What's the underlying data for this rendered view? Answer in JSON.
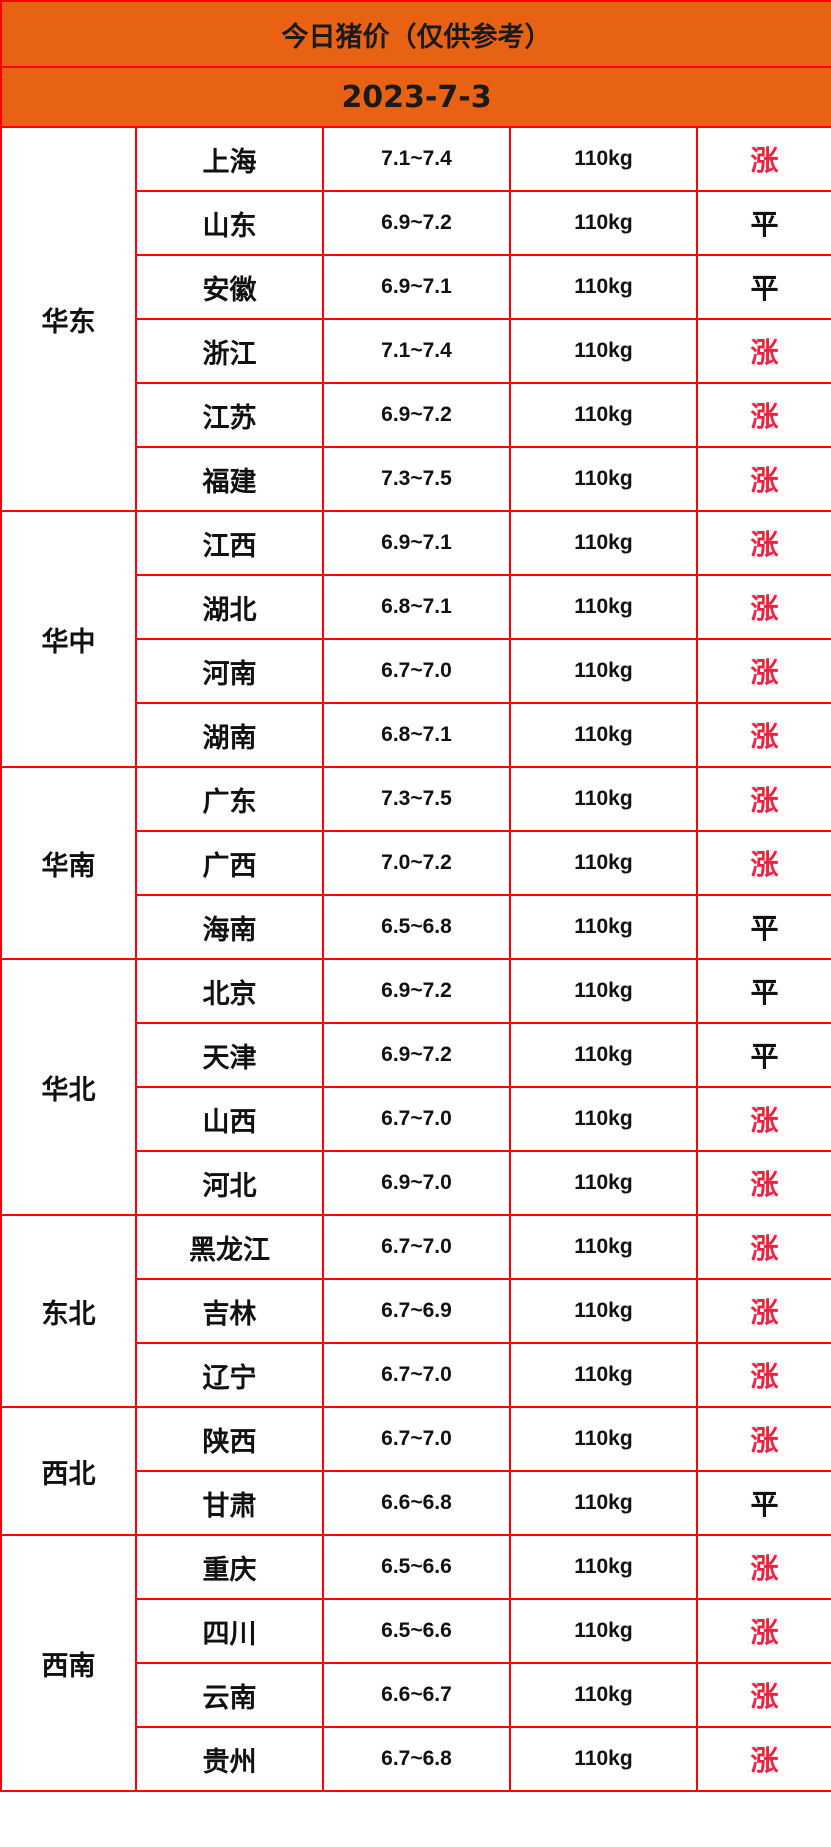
{
  "title": "今日猪价（仅供参考）",
  "date": "2023-7-3",
  "colors": {
    "header_bg": "#e86214",
    "border": "#ff0000",
    "up": "#f5203f",
    "flat": "#111111"
  },
  "groups": [
    {
      "region": "华东",
      "rows": [
        {
          "province": "上海",
          "price": "7.1~7.4",
          "weight": "110kg",
          "trend": "涨"
        },
        {
          "province": "山东",
          "price": "6.9~7.2",
          "weight": "110kg",
          "trend": "平"
        },
        {
          "province": "安徽",
          "price": "6.9~7.1",
          "weight": "110kg",
          "trend": "平"
        },
        {
          "province": "浙江",
          "price": "7.1~7.4",
          "weight": "110kg",
          "trend": "涨"
        },
        {
          "province": "江苏",
          "price": "6.9~7.2",
          "weight": "110kg",
          "trend": "涨"
        },
        {
          "province": "福建",
          "price": "7.3~7.5",
          "weight": "110kg",
          "trend": "涨"
        }
      ]
    },
    {
      "region": "华中",
      "rows": [
        {
          "province": "江西",
          "price": "6.9~7.1",
          "weight": "110kg",
          "trend": "涨"
        },
        {
          "province": "湖北",
          "price": "6.8~7.1",
          "weight": "110kg",
          "trend": "涨"
        },
        {
          "province": "河南",
          "price": "6.7~7.0",
          "weight": "110kg",
          "trend": "涨"
        },
        {
          "province": "湖南",
          "price": "6.8~7.1",
          "weight": "110kg",
          "trend": "涨"
        }
      ]
    },
    {
      "region": "华南",
      "rows": [
        {
          "province": "广东",
          "price": "7.3~7.5",
          "weight": "110kg",
          "trend": "涨"
        },
        {
          "province": "广西",
          "price": "7.0~7.2",
          "weight": "110kg",
          "trend": "涨"
        },
        {
          "province": "海南",
          "price": "6.5~6.8",
          "weight": "110kg",
          "trend": "平"
        }
      ]
    },
    {
      "region": "华北",
      "rows": [
        {
          "province": "北京",
          "price": "6.9~7.2",
          "weight": "110kg",
          "trend": "平"
        },
        {
          "province": "天津",
          "price": "6.9~7.2",
          "weight": "110kg",
          "trend": "平"
        },
        {
          "province": "山西",
          "price": "6.7~7.0",
          "weight": "110kg",
          "trend": "涨"
        },
        {
          "province": "河北",
          "price": "6.9~7.0",
          "weight": "110kg",
          "trend": "涨"
        }
      ]
    },
    {
      "region": "东北",
      "rows": [
        {
          "province": "黑龙江",
          "price": "6.7~7.0",
          "weight": "110kg",
          "trend": "涨"
        },
        {
          "province": "吉林",
          "price": "6.7~6.9",
          "weight": "110kg",
          "trend": "涨"
        },
        {
          "province": "辽宁",
          "price": "6.7~7.0",
          "weight": "110kg",
          "trend": "涨"
        }
      ]
    },
    {
      "region": "西北",
      "rows": [
        {
          "province": "陕西",
          "price": "6.7~7.0",
          "weight": "110kg",
          "trend": "涨"
        },
        {
          "province": "甘肃",
          "price": "6.6~6.8",
          "weight": "110kg",
          "trend": "平"
        }
      ]
    },
    {
      "region": "西南",
      "rows": [
        {
          "province": "重庆",
          "price": "6.5~6.6",
          "weight": "110kg",
          "trend": "涨"
        },
        {
          "province": "四川",
          "price": "6.5~6.6",
          "weight": "110kg",
          "trend": "涨"
        },
        {
          "province": "云南",
          "price": "6.6~6.7",
          "weight": "110kg",
          "trend": "涨"
        },
        {
          "province": "贵州",
          "price": "6.7~6.8",
          "weight": "110kg",
          "trend": "涨"
        }
      ]
    }
  ]
}
